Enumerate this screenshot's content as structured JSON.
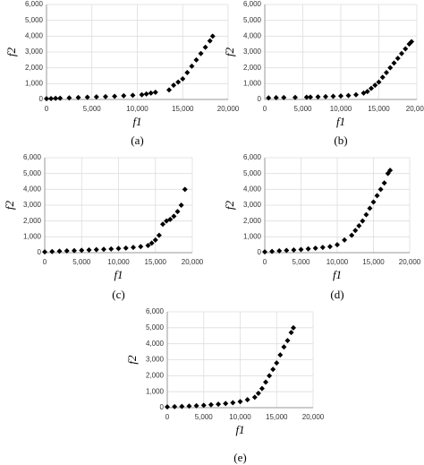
{
  "chart_data": [
    {
      "type": "scatter",
      "label": "(a)",
      "xlabel": "f1",
      "ylabel": "f2",
      "color": "#000000",
      "grid": true,
      "xlim": [
        0,
        20000
      ],
      "ylim": [
        0,
        6000
      ],
      "xticks": [
        0,
        {
          "value": 5000,
          "label": "5,000"
        },
        {
          "value": 10000,
          "label": "10,000"
        },
        {
          "value": 15000,
          "label": "15,000"
        },
        {
          "value": 20000,
          "label": "20,000"
        }
      ],
      "yticks": [
        0,
        {
          "value": 1000,
          "label": "1,000"
        },
        {
          "value": 2000,
          "label": "2,000"
        },
        {
          "value": 3000,
          "label": "3,000"
        },
        {
          "value": 4000,
          "label": "4,000"
        },
        {
          "value": 5000,
          "label": "5,000"
        },
        {
          "value": 6000,
          "label": "6,000"
        }
      ],
      "x": [
        0,
        500,
        1000,
        1500,
        2500,
        3500,
        4500,
        5500,
        6500,
        7500,
        8500,
        9500,
        10500,
        11000,
        11500,
        12000,
        13500,
        14000,
        14500,
        15000,
        15500,
        16000,
        16500,
        17000,
        17500,
        18000,
        18300
      ],
      "values": [
        50,
        60,
        70,
        80,
        100,
        120,
        140,
        160,
        180,
        200,
        230,
        260,
        300,
        350,
        400,
        450,
        600,
        900,
        1100,
        1300,
        1700,
        2100,
        2500,
        2900,
        3300,
        3700,
        4000
      ]
    },
    {
      "type": "scatter",
      "label": "(b)",
      "xlabel": "f1",
      "ylabel": "f2",
      "color": "#000000",
      "grid": true,
      "xlim": [
        0,
        20000
      ],
      "ylim": [
        0,
        6000
      ],
      "xticks": [
        0,
        {
          "value": 5000,
          "label": "5,000"
        },
        {
          "value": 10000,
          "label": "10,000"
        },
        {
          "value": 15000,
          "label": "15,000"
        },
        {
          "value": 20000,
          "label": "20,000"
        }
      ],
      "yticks": [
        0,
        {
          "value": 1000,
          "label": "1,000"
        },
        {
          "value": 2000,
          "label": "2,000"
        },
        {
          "value": 3000,
          "label": "3,000"
        },
        {
          "value": 4000,
          "label": "4,000"
        },
        {
          "value": 5000,
          "label": "5,000"
        },
        {
          "value": 6000,
          "label": "6,000"
        }
      ],
      "x": [
        500,
        1500,
        2500,
        4000,
        5500,
        6000,
        7000,
        8000,
        9000,
        10000,
        11000,
        12000,
        13000,
        13500,
        14000,
        14500,
        15000,
        15500,
        16000,
        16500,
        17000,
        17500,
        18000,
        18500,
        19000,
        19300
      ],
      "values": [
        100,
        110,
        120,
        130,
        140,
        150,
        160,
        180,
        200,
        220,
        250,
        300,
        400,
        500,
        700,
        900,
        1100,
        1400,
        1700,
        2000,
        2300,
        2600,
        2900,
        3200,
        3500,
        3650
      ]
    },
    {
      "type": "scatter",
      "label": "(c)",
      "xlabel": "f1",
      "ylabel": "f2",
      "color": "#000000",
      "grid": true,
      "xlim": [
        0,
        20000
      ],
      "ylim": [
        0,
        6000
      ],
      "xticks": [
        0,
        {
          "value": 5000,
          "label": "5,000"
        },
        {
          "value": 10000,
          "label": "10,000"
        },
        {
          "value": 15000,
          "label": "15,000"
        },
        {
          "value": 20000,
          "label": "20,000"
        }
      ],
      "yticks": [
        0,
        {
          "value": 1000,
          "label": "1,000"
        },
        {
          "value": 2000,
          "label": "2,000"
        },
        {
          "value": 3000,
          "label": "3,000"
        },
        {
          "value": 4000,
          "label": "4,000"
        },
        {
          "value": 5000,
          "label": "5,000"
        },
        {
          "value": 6000,
          "label": "6,000"
        }
      ],
      "x": [
        0,
        1000,
        2000,
        3000,
        4000,
        5000,
        6000,
        7000,
        8000,
        9000,
        10000,
        11000,
        12000,
        13000,
        14000,
        14500,
        15000,
        15500,
        16000,
        16500,
        17000,
        17500,
        18000,
        18500,
        19000
      ],
      "values": [
        50,
        70,
        90,
        110,
        130,
        150,
        170,
        190,
        210,
        230,
        260,
        290,
        330,
        380,
        450,
        600,
        800,
        1100,
        1800,
        2000,
        2100,
        2300,
        2600,
        3000,
        4000
      ]
    },
    {
      "type": "scatter",
      "label": "(d)",
      "xlabel": "f1",
      "ylabel": "f2",
      "color": "#000000",
      "grid": true,
      "xlim": [
        0,
        20000
      ],
      "ylim": [
        0,
        6000
      ],
      "xticks": [
        0,
        {
          "value": 5000,
          "label": "5,000"
        },
        {
          "value": 10000,
          "label": "10,000"
        },
        {
          "value": 15000,
          "label": "15,000"
        },
        {
          "value": 20000,
          "label": "20,000"
        }
      ],
      "yticks": [
        0,
        {
          "value": 1000,
          "label": "1,000"
        },
        {
          "value": 2000,
          "label": "2,000"
        },
        {
          "value": 3000,
          "label": "3,000"
        },
        {
          "value": 4000,
          "label": "4,000"
        },
        {
          "value": 5000,
          "label": "5,000"
        },
        {
          "value": 6000,
          "label": "6,000"
        }
      ],
      "x": [
        0,
        1000,
        2000,
        3000,
        4000,
        5000,
        6000,
        7000,
        8000,
        9000,
        10000,
        11000,
        12000,
        12500,
        13000,
        13500,
        14000,
        14500,
        15000,
        15500,
        16000,
        16500,
        17000,
        17300
      ],
      "values": [
        50,
        80,
        110,
        140,
        170,
        200,
        240,
        280,
        330,
        380,
        500,
        800,
        1100,
        1400,
        1700,
        2000,
        2400,
        2800,
        3200,
        3600,
        4000,
        4400,
        5000,
        5200
      ]
    },
    {
      "type": "scatter",
      "label": "(e)",
      "xlabel": "f1",
      "ylabel": "f2",
      "color": "#000000",
      "grid": true,
      "xlim": [
        0,
        20000
      ],
      "ylim": [
        0,
        6000
      ],
      "xticks": [
        0,
        {
          "value": 5000,
          "label": "5,000"
        },
        {
          "value": 10000,
          "label": "10,000"
        },
        {
          "value": 15000,
          "label": "15,000"
        },
        {
          "value": 20000,
          "label": "20,000"
        }
      ],
      "yticks": [
        0,
        {
          "value": 1000,
          "label": "1,000"
        },
        {
          "value": 2000,
          "label": "2,000"
        },
        {
          "value": 3000,
          "label": "3,000"
        },
        {
          "value": 4000,
          "label": "4,000"
        },
        {
          "value": 5000,
          "label": "5,000"
        },
        {
          "value": 6000,
          "label": "6,000"
        }
      ],
      "x": [
        0,
        1000,
        2000,
        3000,
        4000,
        5000,
        6000,
        7000,
        8000,
        9000,
        10000,
        11000,
        12000,
        12500,
        13000,
        13500,
        14000,
        14500,
        15000,
        15500,
        16000,
        16500,
        17000,
        17300
      ],
      "values": [
        50,
        60,
        80,
        100,
        120,
        150,
        180,
        220,
        260,
        310,
        380,
        500,
        650,
        900,
        1200,
        1600,
        2000,
        2400,
        2800,
        3300,
        3800,
        4200,
        4700,
        5000
      ]
    }
  ]
}
